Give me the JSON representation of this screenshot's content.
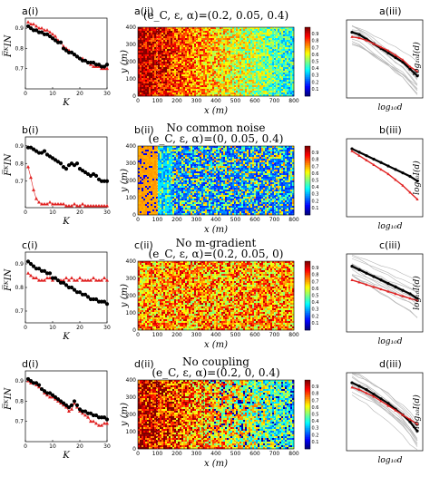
{
  "colors": {
    "black_series": "#000000",
    "red_series": "#e02020",
    "gray_lines": "#b4b4b4"
  },
  "heatmap_colormap": "jet",
  "colorbar": {
    "min": 0,
    "max": 1,
    "ticks": [
      "0.9",
      "0.8",
      "0.7",
      "0.6",
      "0.5",
      "0.4",
      "0.3",
      "0.2",
      "0.1"
    ]
  },
  "axis_titles": {
    "left_y": "F̅ᴷIN",
    "left_x": "K",
    "heat_y": "y (m)",
    "heat_x": "x (m)",
    "right_y": "log₁₀I(d)",
    "right_x": "log₁₀d"
  },
  "rows": [
    {
      "left": {
        "label": "a(i)",
        "xticks": [
          "0",
          "10",
          "20",
          "30"
        ],
        "yticks": [
          "0.9",
          "0.8",
          "0.7"
        ],
        "xlim": [
          0,
          30
        ],
        "ylim": [
          0.6,
          0.95
        ],
        "black": [
          0.91,
          0.9,
          0.89,
          0.89,
          0.88,
          0.88,
          0.87,
          0.87,
          0.86,
          0.85,
          0.84,
          0.83,
          0.83,
          0.8,
          0.79,
          0.78,
          0.78,
          0.77,
          0.76,
          0.75,
          0.74,
          0.74,
          0.73,
          0.73,
          0.73,
          0.72,
          0.72,
          0.71,
          0.71,
          0.72
        ],
        "red": [
          0.93,
          0.92,
          0.92,
          0.91,
          0.9,
          0.9,
          0.89,
          0.89,
          0.88,
          0.87,
          0.86,
          0.84,
          0.83,
          0.81,
          0.8,
          0.79,
          0.78,
          0.77,
          0.76,
          0.75,
          0.75,
          0.74,
          0.73,
          0.72,
          0.71,
          0.71,
          0.71,
          0.7,
          0.7,
          0.7
        ]
      },
      "heat": {
        "label": "a(ii)",
        "title": "(e_C, ε, α)=(0.2, 0.05, 0.4)",
        "subtitle": "",
        "mode": "grad",
        "xticks": [
          "0",
          "100",
          "200",
          "300",
          "400",
          "500",
          "600",
          "700",
          "800"
        ],
        "yticks": [
          "0",
          "100",
          "200",
          "300",
          "400"
        ]
      },
      "right": {
        "label": "a(iii)",
        "black": [
          -0.3,
          -0.4,
          -0.6,
          -0.8,
          -1.0,
          -1.2,
          -1.4,
          -1.6,
          -1.9,
          -2.2
        ],
        "red": [
          -0.5,
          -0.55,
          -0.65,
          -0.8,
          -0.95,
          -1.1,
          -1.3,
          -1.5,
          -1.8,
          -2.0
        ],
        "gray": true
      }
    },
    {
      "left": {
        "label": "b(i)",
        "xticks": [
          "0",
          "10",
          "20",
          "30"
        ],
        "yticks": [
          "0.9",
          "0.8",
          "0.7"
        ],
        "xlim": [
          0,
          30
        ],
        "ylim": [
          0.55,
          0.95
        ],
        "black": [
          0.89,
          0.89,
          0.88,
          0.87,
          0.86,
          0.86,
          0.87,
          0.85,
          0.84,
          0.83,
          0.82,
          0.81,
          0.8,
          0.78,
          0.77,
          0.79,
          0.8,
          0.79,
          0.8,
          0.77,
          0.76,
          0.75,
          0.74,
          0.73,
          0.74,
          0.73,
          0.71,
          0.7,
          0.7,
          0.7
        ],
        "red": [
          0.78,
          0.72,
          0.65,
          0.6,
          0.58,
          0.57,
          0.57,
          0.57,
          0.58,
          0.57,
          0.57,
          0.57,
          0.57,
          0.57,
          0.56,
          0.56,
          0.56,
          0.57,
          0.56,
          0.56,
          0.57,
          0.56,
          0.56,
          0.56,
          0.56,
          0.56,
          0.56,
          0.56,
          0.56,
          0.56
        ]
      },
      "heat": {
        "label": "b(ii)",
        "title": "(e_C, ε, α)=(0, 0.05, 0.4)",
        "subtitle": "No common noise",
        "mode": "nocommon",
        "xticks": [
          "0",
          "100",
          "200",
          "300",
          "400",
          "500",
          "600",
          "700",
          "800"
        ],
        "yticks": [
          "0",
          "100",
          "200",
          "300",
          "400"
        ]
      },
      "right": {
        "label": "b(iii)",
        "black": [
          -0.2,
          -0.35,
          -0.5,
          -0.65,
          -0.8,
          -0.95,
          -1.1,
          -1.25,
          -1.4,
          -1.6
        ],
        "red": [
          -0.3,
          -0.5,
          -0.7,
          -0.9,
          -1.1,
          -1.3,
          -1.55,
          -1.8,
          -2.1,
          -2.4
        ],
        "gray": false
      }
    },
    {
      "left": {
        "label": "c(i)",
        "xticks": [
          "0",
          "10",
          "20",
          "30"
        ],
        "yticks": [
          "0.9",
          "0.8",
          "0.7"
        ],
        "xlim": [
          0,
          30
        ],
        "ylim": [
          0.65,
          0.95
        ],
        "black": [
          0.91,
          0.9,
          0.89,
          0.88,
          0.88,
          0.87,
          0.87,
          0.86,
          0.86,
          0.84,
          0.84,
          0.83,
          0.82,
          0.82,
          0.81,
          0.8,
          0.8,
          0.79,
          0.78,
          0.78,
          0.77,
          0.77,
          0.76,
          0.75,
          0.75,
          0.75,
          0.74,
          0.74,
          0.74,
          0.73
        ],
        "red": [
          0.86,
          0.85,
          0.84,
          0.84,
          0.83,
          0.83,
          0.83,
          0.84,
          0.84,
          0.83,
          0.84,
          0.83,
          0.83,
          0.83,
          0.84,
          0.83,
          0.84,
          0.83,
          0.83,
          0.84,
          0.83,
          0.83,
          0.83,
          0.83,
          0.84,
          0.83,
          0.83,
          0.83,
          0.84,
          0.83
        ]
      },
      "heat": {
        "label": "c(ii)",
        "title": "(e_C, ε, α)=(0.2, 0.05, 0)",
        "subtitle": "No m-gradient",
        "mode": "flat",
        "xticks": [
          "0",
          "100",
          "200",
          "300",
          "400",
          "500",
          "600",
          "700",
          "800"
        ],
        "yticks": [
          "0",
          "100",
          "200",
          "300",
          "400"
        ]
      },
      "right": {
        "label": "c(iii)",
        "black": [
          -0.3,
          -0.45,
          -0.6,
          -0.75,
          -0.9,
          -1.05,
          -1.2,
          -1.35,
          -1.5,
          -1.7
        ],
        "red": [
          -0.9,
          -1.0,
          -1.1,
          -1.2,
          -1.3,
          -1.4,
          -1.5,
          -1.6,
          -1.7,
          -1.8
        ],
        "gray": true
      }
    },
    {
      "left": {
        "label": "d(i)",
        "xticks": [
          "0",
          "10",
          "20",
          "30"
        ],
        "yticks": [
          "0.9",
          "0.8",
          "0.7"
        ],
        "xlim": [
          0,
          30
        ],
        "ylim": [
          0.6,
          0.95
        ],
        "black": [
          0.91,
          0.9,
          0.89,
          0.89,
          0.88,
          0.86,
          0.85,
          0.84,
          0.84,
          0.83,
          0.82,
          0.81,
          0.8,
          0.79,
          0.78,
          0.77,
          0.78,
          0.8,
          0.78,
          0.76,
          0.75,
          0.75,
          0.74,
          0.74,
          0.73,
          0.73,
          0.72,
          0.72,
          0.72,
          0.71
        ],
        "red": [
          0.9,
          0.89,
          0.89,
          0.88,
          0.87,
          0.86,
          0.84,
          0.83,
          0.82,
          0.82,
          0.81,
          0.8,
          0.79,
          0.78,
          0.77,
          0.75,
          0.76,
          0.79,
          0.77,
          0.75,
          0.74,
          0.73,
          0.72,
          0.7,
          0.7,
          0.69,
          0.68,
          0.68,
          0.69,
          0.69
        ]
      },
      "heat": {
        "label": "d(ii)",
        "title": "(e_C, ε, α)=(0.2, 0, 0.4)",
        "subtitle": "No coupling",
        "mode": "nocoupling",
        "xticks": [
          "0",
          "100",
          "200",
          "300",
          "400",
          "500",
          "600",
          "700",
          "800"
        ],
        "yticks": [
          "0",
          "100",
          "200",
          "300",
          "400"
        ]
      },
      "right": {
        "label": "d(iii)",
        "black": [
          -0.2,
          -0.35,
          -0.5,
          -0.7,
          -0.9,
          -1.1,
          -1.35,
          -1.6,
          -1.9,
          -2.3
        ],
        "red": [
          -0.4,
          -0.5,
          -0.65,
          -0.8,
          -1.0,
          -1.2,
          -1.4,
          -1.6,
          -1.8,
          -2.0
        ],
        "gray": true
      }
    }
  ],
  "chart_data": [
    {
      "type": "scatter",
      "panel": "a(i)",
      "xlabel": "K",
      "x_range": [
        0,
        30
      ]
    },
    {
      "type": "heatmap",
      "panel": "a(ii)",
      "title": "(e_C, ε, α)=(0.2, 0.05, 0.4)",
      "xlabel": "x (m)",
      "ylabel": "y (m)",
      "xlim": [
        0,
        800
      ],
      "ylim": [
        0,
        400
      ]
    },
    {
      "type": "line",
      "panel": "a(iii)",
      "xlabel": "log10 d",
      "ylabel": "log10 I(d)"
    },
    {
      "type": "scatter",
      "panel": "b(i)",
      "xlabel": "K",
      "x_range": [
        0,
        30
      ]
    },
    {
      "type": "heatmap",
      "panel": "b(ii)",
      "title": "(e_C, ε, α)=(0, 0.05, 0.4)",
      "subtitle": "No common noise",
      "xlabel": "x (m)",
      "ylabel": "y (m)",
      "xlim": [
        0,
        800
      ],
      "ylim": [
        0,
        400
      ]
    },
    {
      "type": "line",
      "panel": "b(iii)",
      "xlabel": "log10 d",
      "ylabel": "log10 I(d)"
    },
    {
      "type": "scatter",
      "panel": "c(i)",
      "xlabel": "K",
      "x_range": [
        0,
        30
      ]
    },
    {
      "type": "heatmap",
      "panel": "c(ii)",
      "title": "(e_C, ε, α)=(0.2, 0.05, 0)",
      "subtitle": "No m-gradient",
      "xlabel": "x (m)",
      "ylabel": "y (m)",
      "xlim": [
        0,
        800
      ],
      "ylim": [
        0,
        400
      ]
    },
    {
      "type": "line",
      "panel": "c(iii)",
      "xlabel": "log10 d",
      "ylabel": "log10 I(d)"
    },
    {
      "type": "scatter",
      "panel": "d(i)",
      "xlabel": "K",
      "x_range": [
        0,
        30
      ]
    },
    {
      "type": "heatmap",
      "panel": "d(ii)",
      "title": "(e_C, ε, α)=(0.2, 0, 0.4)",
      "subtitle": "No coupling",
      "xlabel": "x (m)",
      "ylabel": "y (m)",
      "xlim": [
        0,
        800
      ],
      "ylim": [
        0,
        400
      ]
    },
    {
      "type": "line",
      "panel": "d(iii)",
      "xlabel": "log10 d",
      "ylabel": "log10 I(d)"
    }
  ]
}
